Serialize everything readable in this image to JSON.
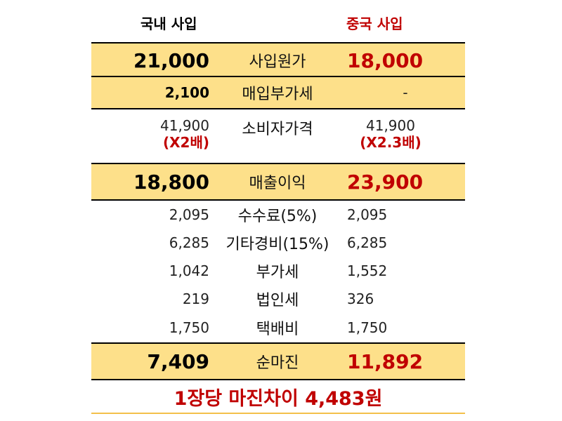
{
  "headers": {
    "domestic": "국내 사입",
    "china": "중국 사입"
  },
  "rows": {
    "cost": {
      "label": "사입원가",
      "domestic": "21,000",
      "china": "18,000"
    },
    "vat_purchase": {
      "label": "매입부가세",
      "domestic": "2,100",
      "china": "-"
    },
    "consumer_price": {
      "label": "소비자가격",
      "domestic": "41,900",
      "domestic_note": "(X2배)",
      "china": "41,900",
      "china_note": "(X2.3배)"
    },
    "gross_profit": {
      "label": "매출이익",
      "domestic": "18,800",
      "china": "23,900"
    },
    "commission": {
      "label": "수수료(5%)",
      "domestic": "2,095",
      "china": "2,095"
    },
    "other_expense": {
      "label": "기타경비(15%)",
      "domestic": "6,285",
      "china": "6,285"
    },
    "vat": {
      "label": "부가세",
      "domestic": "1,042",
      "china": "1,552"
    },
    "corporate_tax": {
      "label": "법인세",
      "domestic": "219",
      "china": "326"
    },
    "delivery": {
      "label": "택배비",
      "domestic": "1,750",
      "china": "1,750"
    },
    "net_margin": {
      "label": "순마진",
      "domestic": "7,409",
      "china": "11,892"
    }
  },
  "summary": "1장당 마진차이 4,483원",
  "colors": {
    "highlight": "#fde08a",
    "accent_red": "#c00000",
    "bottom_line": "#f3c04a"
  }
}
